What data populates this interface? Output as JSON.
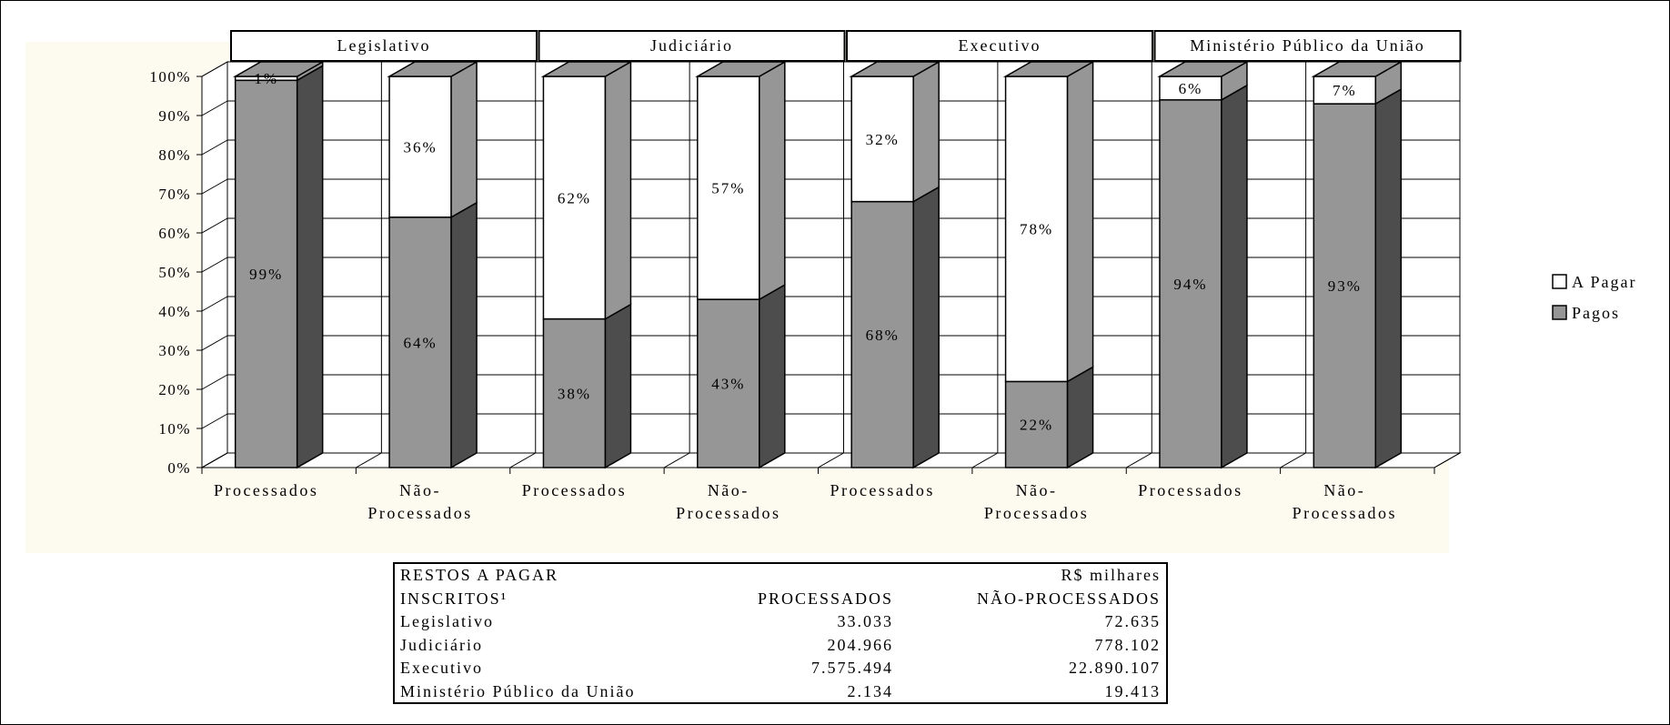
{
  "chart_data": {
    "type": "bar",
    "stacked": true,
    "percent_stacked": true,
    "three_d": true,
    "groups": [
      "Legislativo",
      "Judiciário",
      "Executivo",
      "Ministério Público da União"
    ],
    "categories": [
      {
        "group": "Legislativo",
        "label": [
          "Processados"
        ]
      },
      {
        "group": "Legislativo",
        "label": [
          "Não-",
          "Processados"
        ]
      },
      {
        "group": "Judiciário",
        "label": [
          "Processados"
        ]
      },
      {
        "group": "Judiciário",
        "label": [
          "Não-",
          "Processados"
        ]
      },
      {
        "group": "Executivo",
        "label": [
          "Processados"
        ]
      },
      {
        "group": "Executivo",
        "label": [
          "Não-",
          "Processados"
        ]
      },
      {
        "group": "Ministério Público da União",
        "label": [
          "Processados"
        ]
      },
      {
        "group": "Ministério Público da União",
        "label": [
          "Não-",
          "Processados"
        ]
      }
    ],
    "series": [
      {
        "name": "Pagos",
        "values": [
          99,
          64,
          38,
          43,
          68,
          22,
          94,
          93
        ],
        "labels": [
          "99%",
          "64%",
          "38%",
          "43%",
          "68%",
          "22%",
          "94%",
          "93%"
        ]
      },
      {
        "name": "A Pagar",
        "values": [
          1,
          36,
          62,
          57,
          32,
          78,
          6,
          7
        ],
        "labels": [
          "1%",
          "36%",
          "62%",
          "57%",
          "32%",
          "78%",
          "6%",
          "7%"
        ]
      }
    ],
    "y_ticks": [
      "0%",
      "10%",
      "20%",
      "30%",
      "40%",
      "50%",
      "60%",
      "70%",
      "80%",
      "90%",
      "100%"
    ],
    "ylim": [
      0,
      100
    ],
    "grid": true,
    "legend_position": "right",
    "colors": {
      "Pagos": "#969696",
      "A Pagar": "#ffffff",
      "plot_background": "#fdfaf0",
      "wall_grid": "#000000"
    }
  },
  "table": {
    "title_lines": [
      "RESTOS A PAGAR",
      "INSCRITOS¹"
    ],
    "unit": "R$ milhares",
    "col_headers": [
      "PROCESSADOS",
      "NÃO-PROCESSADOS"
    ],
    "rows": [
      {
        "label": "Legislativo",
        "processados": "33.033",
        "nao_processados": "72.635"
      },
      {
        "label": "Judiciário",
        "processados": "204.966",
        "nao_processados": "778.102"
      },
      {
        "label": "Executivo",
        "processados": "7.575.494",
        "nao_processados": "22.890.107"
      },
      {
        "label": "Ministério Público da União",
        "processados": "2.134",
        "nao_processados": "19.413"
      }
    ]
  }
}
